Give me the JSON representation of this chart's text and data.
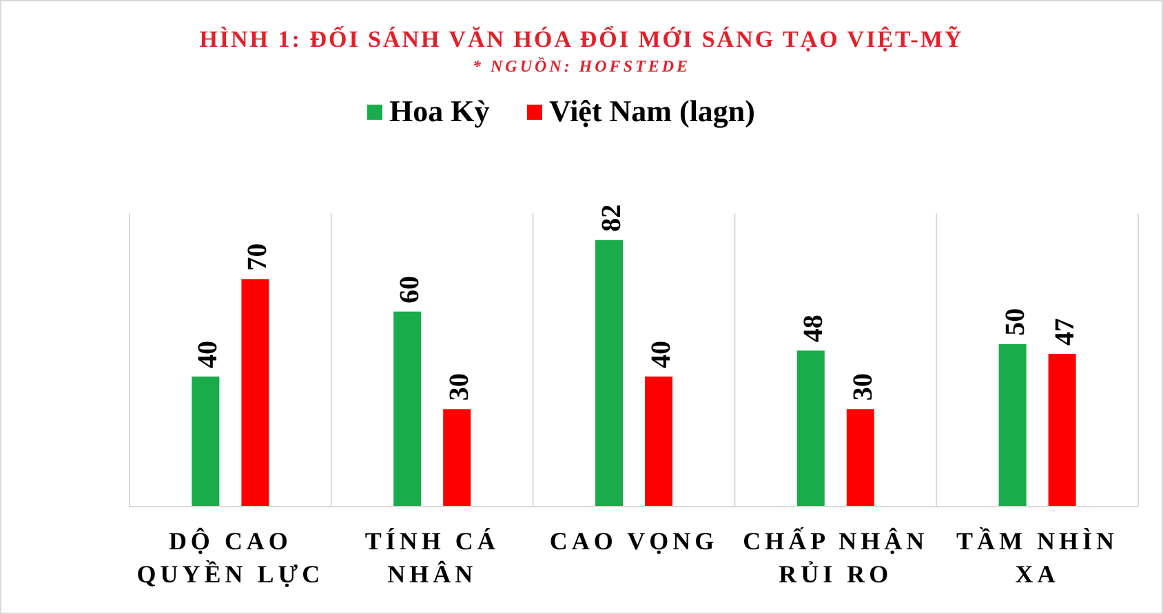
{
  "chart_data": {
    "type": "bar",
    "title": "HÌNH 1: ĐỐI SÁNH VĂN HÓA ĐỔI MỚI SÁNG TẠO VIỆT-MỸ",
    "subtitle": "* NGUỒN: HOFSTEDE",
    "categories": [
      "DỘ CAO QUYỀN LỰC",
      "TÍNH CÁ NHÂN",
      "CAO VỌNG",
      "CHẤP NHẬN RỦI RO",
      "TẦM NHÌN XA"
    ],
    "series": [
      {
        "name": "Hoa Kỳ",
        "color": "#1aab4b",
        "values": [
          40,
          60,
          82,
          48,
          50
        ]
      },
      {
        "name": "Việt Nam (lagn)",
        "color": "#ff0000",
        "values": [
          70,
          30,
          40,
          30,
          47
        ]
      }
    ],
    "data_labels": true,
    "legend": "top",
    "grid": "x"
  }
}
